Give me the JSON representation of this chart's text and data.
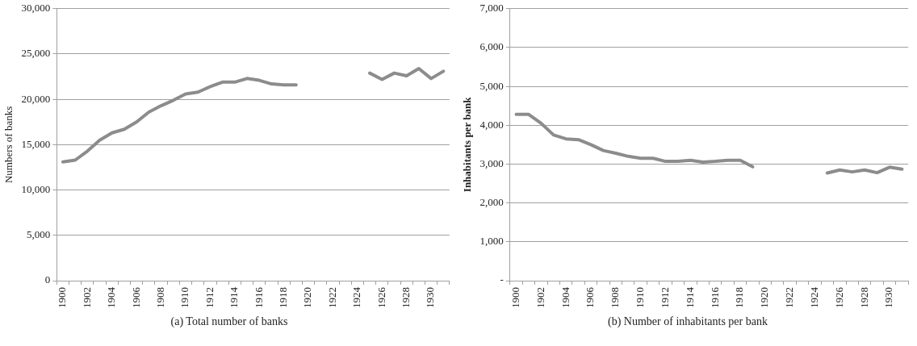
{
  "chart_data": [
    {
      "type": "line",
      "title": "(a)  Total number of banks",
      "ylabel": "Numbers of banks",
      "categories": [
        "1900",
        null,
        "1902",
        null,
        "1904",
        null,
        "1906",
        null,
        "1908",
        null,
        "1910",
        null,
        "1912",
        null,
        "1914",
        null,
        "1916",
        null,
        "1918",
        null,
        "1920",
        null,
        "1922",
        null,
        "1924",
        null,
        "1926",
        null,
        "1928",
        null,
        "1930",
        null
      ],
      "series": [
        {
          "color": "#8c8c8c",
          "values": [
            13100,
            13300,
            14300,
            15500,
            16300,
            16700,
            17500,
            18600,
            19300,
            19900,
            20600,
            20800,
            21400,
            21900,
            21900,
            22300,
            22100,
            21700,
            21600,
            21600,
            null,
            null,
            null,
            null,
            null,
            22900,
            22200,
            22900,
            22600,
            23400,
            22300,
            23100
          ]
        }
      ],
      "ylim": [
        0,
        30000
      ],
      "yticks": [
        {
          "value": 0,
          "label": "0"
        },
        {
          "value": 5000,
          "label": "5,000"
        },
        {
          "value": 10000,
          "label": "10,000"
        },
        {
          "value": 15000,
          "label": "15,000"
        },
        {
          "value": 20000,
          "label": "20,000"
        },
        {
          "value": 25000,
          "label": "25,000"
        },
        {
          "value": 30000,
          "label": "30,000"
        }
      ],
      "grid": "y",
      "legend": false,
      "marker": "none",
      "line_style": "solid"
    },
    {
      "type": "line",
      "title": "(b)  Number of inhabitants per bank",
      "ylabel": "Inhabitants per bank",
      "categories": [
        "1900",
        null,
        "1902",
        null,
        "1904",
        null,
        "1906",
        null,
        "1908",
        null,
        "1910",
        null,
        "1912",
        null,
        "1914",
        null,
        "1916",
        null,
        "1918",
        null,
        "1920",
        null,
        "1922",
        null,
        "1924",
        null,
        "1926",
        null,
        "1928",
        null,
        "1930",
        null
      ],
      "series": [
        {
          "color": "#8c8c8c",
          "values": [
            4280,
            4280,
            4050,
            3750,
            3650,
            3630,
            3500,
            3350,
            3280,
            3200,
            3150,
            3150,
            3070,
            3070,
            3100,
            3050,
            3070,
            3100,
            3100,
            2930,
            null,
            null,
            null,
            null,
            null,
            2770,
            2850,
            2800,
            2850,
            2780,
            2920,
            2870
          ]
        }
      ],
      "ylim": [
        0,
        7000
      ],
      "yticks": [
        {
          "value": 0,
          "label": "-"
        },
        {
          "value": 1000,
          "label": "1,000"
        },
        {
          "value": 2000,
          "label": "2,000"
        },
        {
          "value": 3000,
          "label": "3,000"
        },
        {
          "value": 4000,
          "label": "4,000"
        },
        {
          "value": 5000,
          "label": "5,000"
        },
        {
          "value": 6000,
          "label": "6,000"
        },
        {
          "value": 7000,
          "label": "7,000"
        }
      ],
      "grid": "y",
      "legend": false,
      "marker": "none",
      "line_style": "solid"
    }
  ]
}
